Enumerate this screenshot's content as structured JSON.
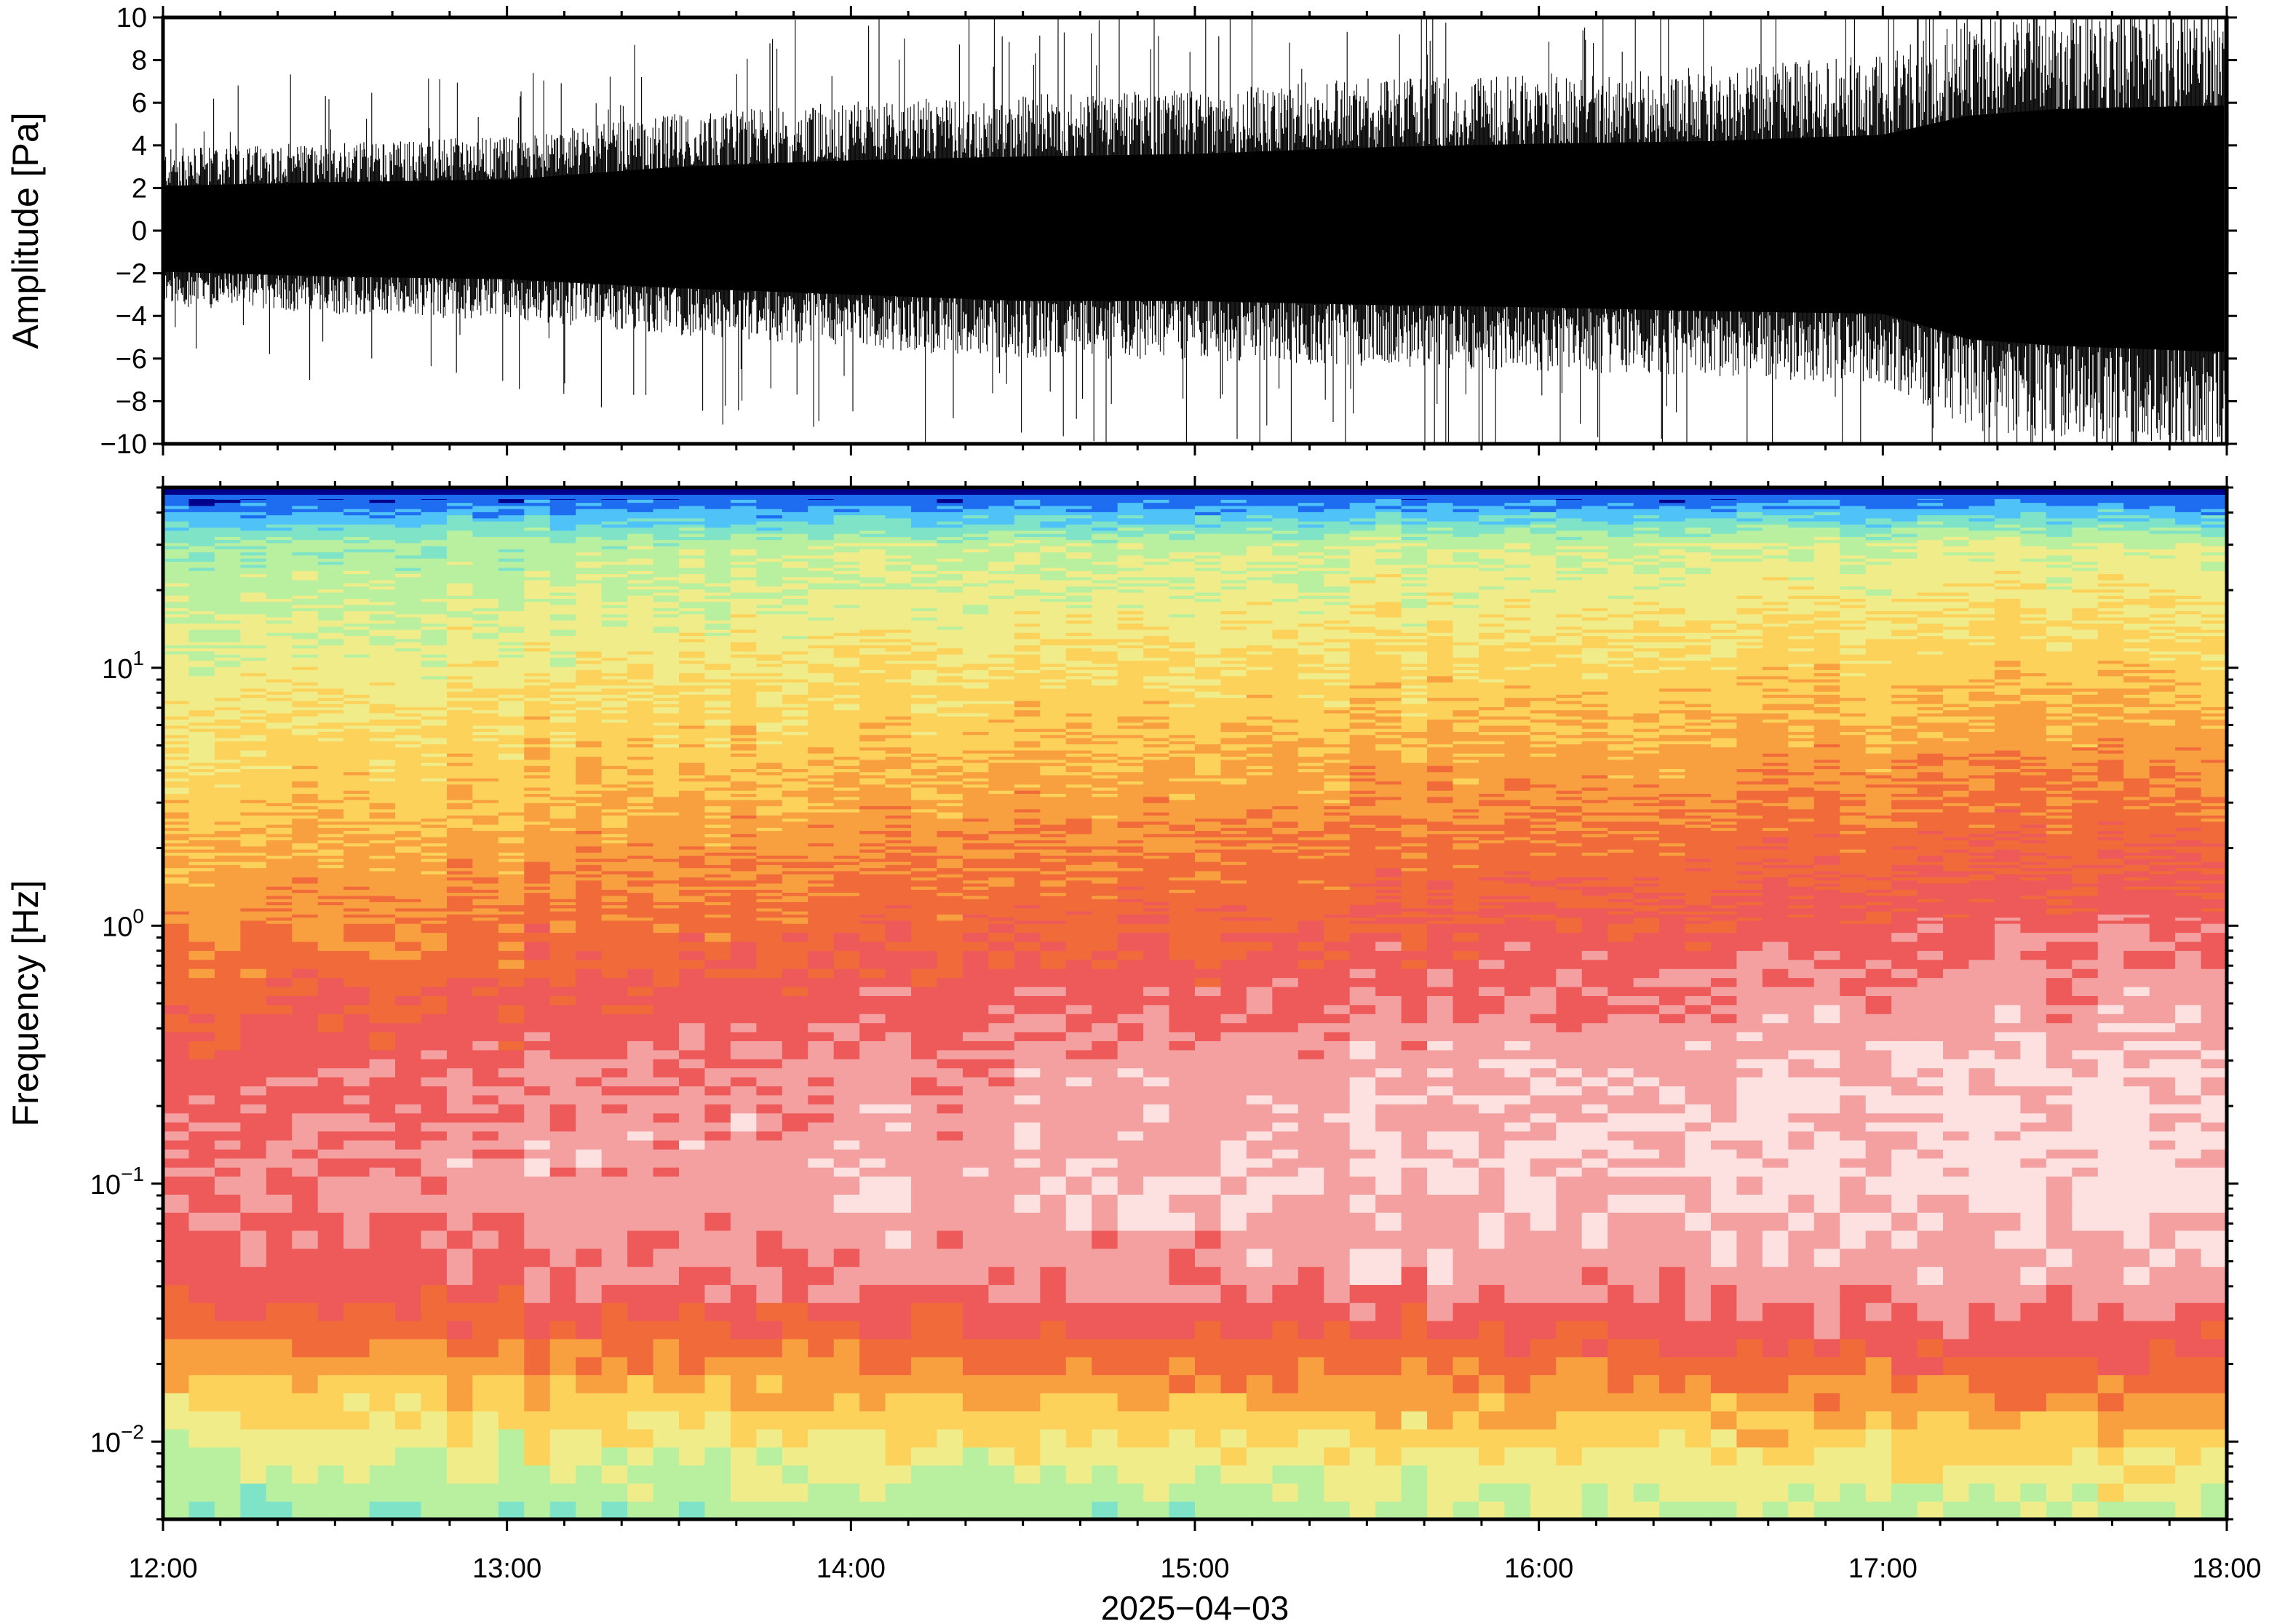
{
  "chart_data": [
    {
      "type": "line",
      "panel": "waveform",
      "ylabel": "Amplitude [Pa]",
      "ylim": [
        -10,
        10
      ],
      "yticks": [
        10,
        8,
        6,
        4,
        2,
        0,
        -2,
        -4,
        -6,
        -8,
        -10
      ],
      "ytick_labels": [
        "10",
        "8",
        "6",
        "4",
        "2",
        "0",
        "−2",
        "−4",
        "−6",
        "−8",
        "−10"
      ],
      "xlim": [
        "12:00",
        "18:00"
      ],
      "envelope": {
        "x_hours": [
          12.0,
          12.5,
          13.0,
          13.5,
          14.0,
          14.5,
          15.0,
          15.5,
          16.0,
          16.5,
          17.0,
          17.25,
          17.5,
          18.0
        ],
        "upper": [
          3.5,
          3.8,
          4.0,
          5.0,
          5.5,
          5.8,
          6.0,
          6.5,
          6.8,
          7.0,
          7.5,
          9.0,
          9.5,
          9.8
        ],
        "lower": [
          -3.2,
          -3.6,
          -3.8,
          -4.5,
          -5.0,
          -5.5,
          -5.5,
          -5.8,
          -6.0,
          -6.3,
          -6.5,
          -8.5,
          -9.0,
          -9.5
        ]
      },
      "color": "#000000"
    },
    {
      "type": "heatmap",
      "panel": "spectrogram",
      "ylabel": "Frequency [Hz]",
      "yscale": "log",
      "ylim": [
        0.005,
        50
      ],
      "yticks": [
        0.01,
        0.1,
        1,
        10
      ],
      "ytick_labels": [
        {
          "base": "10",
          "exp": "−2"
        },
        {
          "base": "10",
          "exp": "−1"
        },
        {
          "base": "10",
          "exp": "0"
        },
        {
          "base": "10",
          "exp": "1"
        }
      ],
      "xlabel": "2025−04−03",
      "xticks": [
        "12:00",
        "13:00",
        "14:00",
        "15:00",
        "16:00",
        "17:00",
        "18:00"
      ],
      "colormap": [
        "#00008b",
        "#1e6cf0",
        "#4fc3f7",
        "#7fe3c8",
        "#b8f0a0",
        "#f0ec8a",
        "#fcd25a",
        "#f8a040",
        "#f06a3a",
        "#ee5a5a",
        "#f4a0a0",
        "#fde0e0"
      ],
      "level_profile": {
        "freq_hz": [
          0.005,
          0.01,
          0.02,
          0.04,
          0.1,
          0.3,
          1,
          3,
          10,
          30,
          50
        ],
        "levels_12h": [
          0.32,
          0.45,
          0.62,
          0.8,
          0.86,
          0.8,
          0.66,
          0.56,
          0.46,
          0.36,
          0.05
        ],
        "levels_18h": [
          0.4,
          0.55,
          0.75,
          0.9,
          0.96,
          0.95,
          0.82,
          0.7,
          0.56,
          0.44,
          0.05
        ]
      }
    }
  ]
}
